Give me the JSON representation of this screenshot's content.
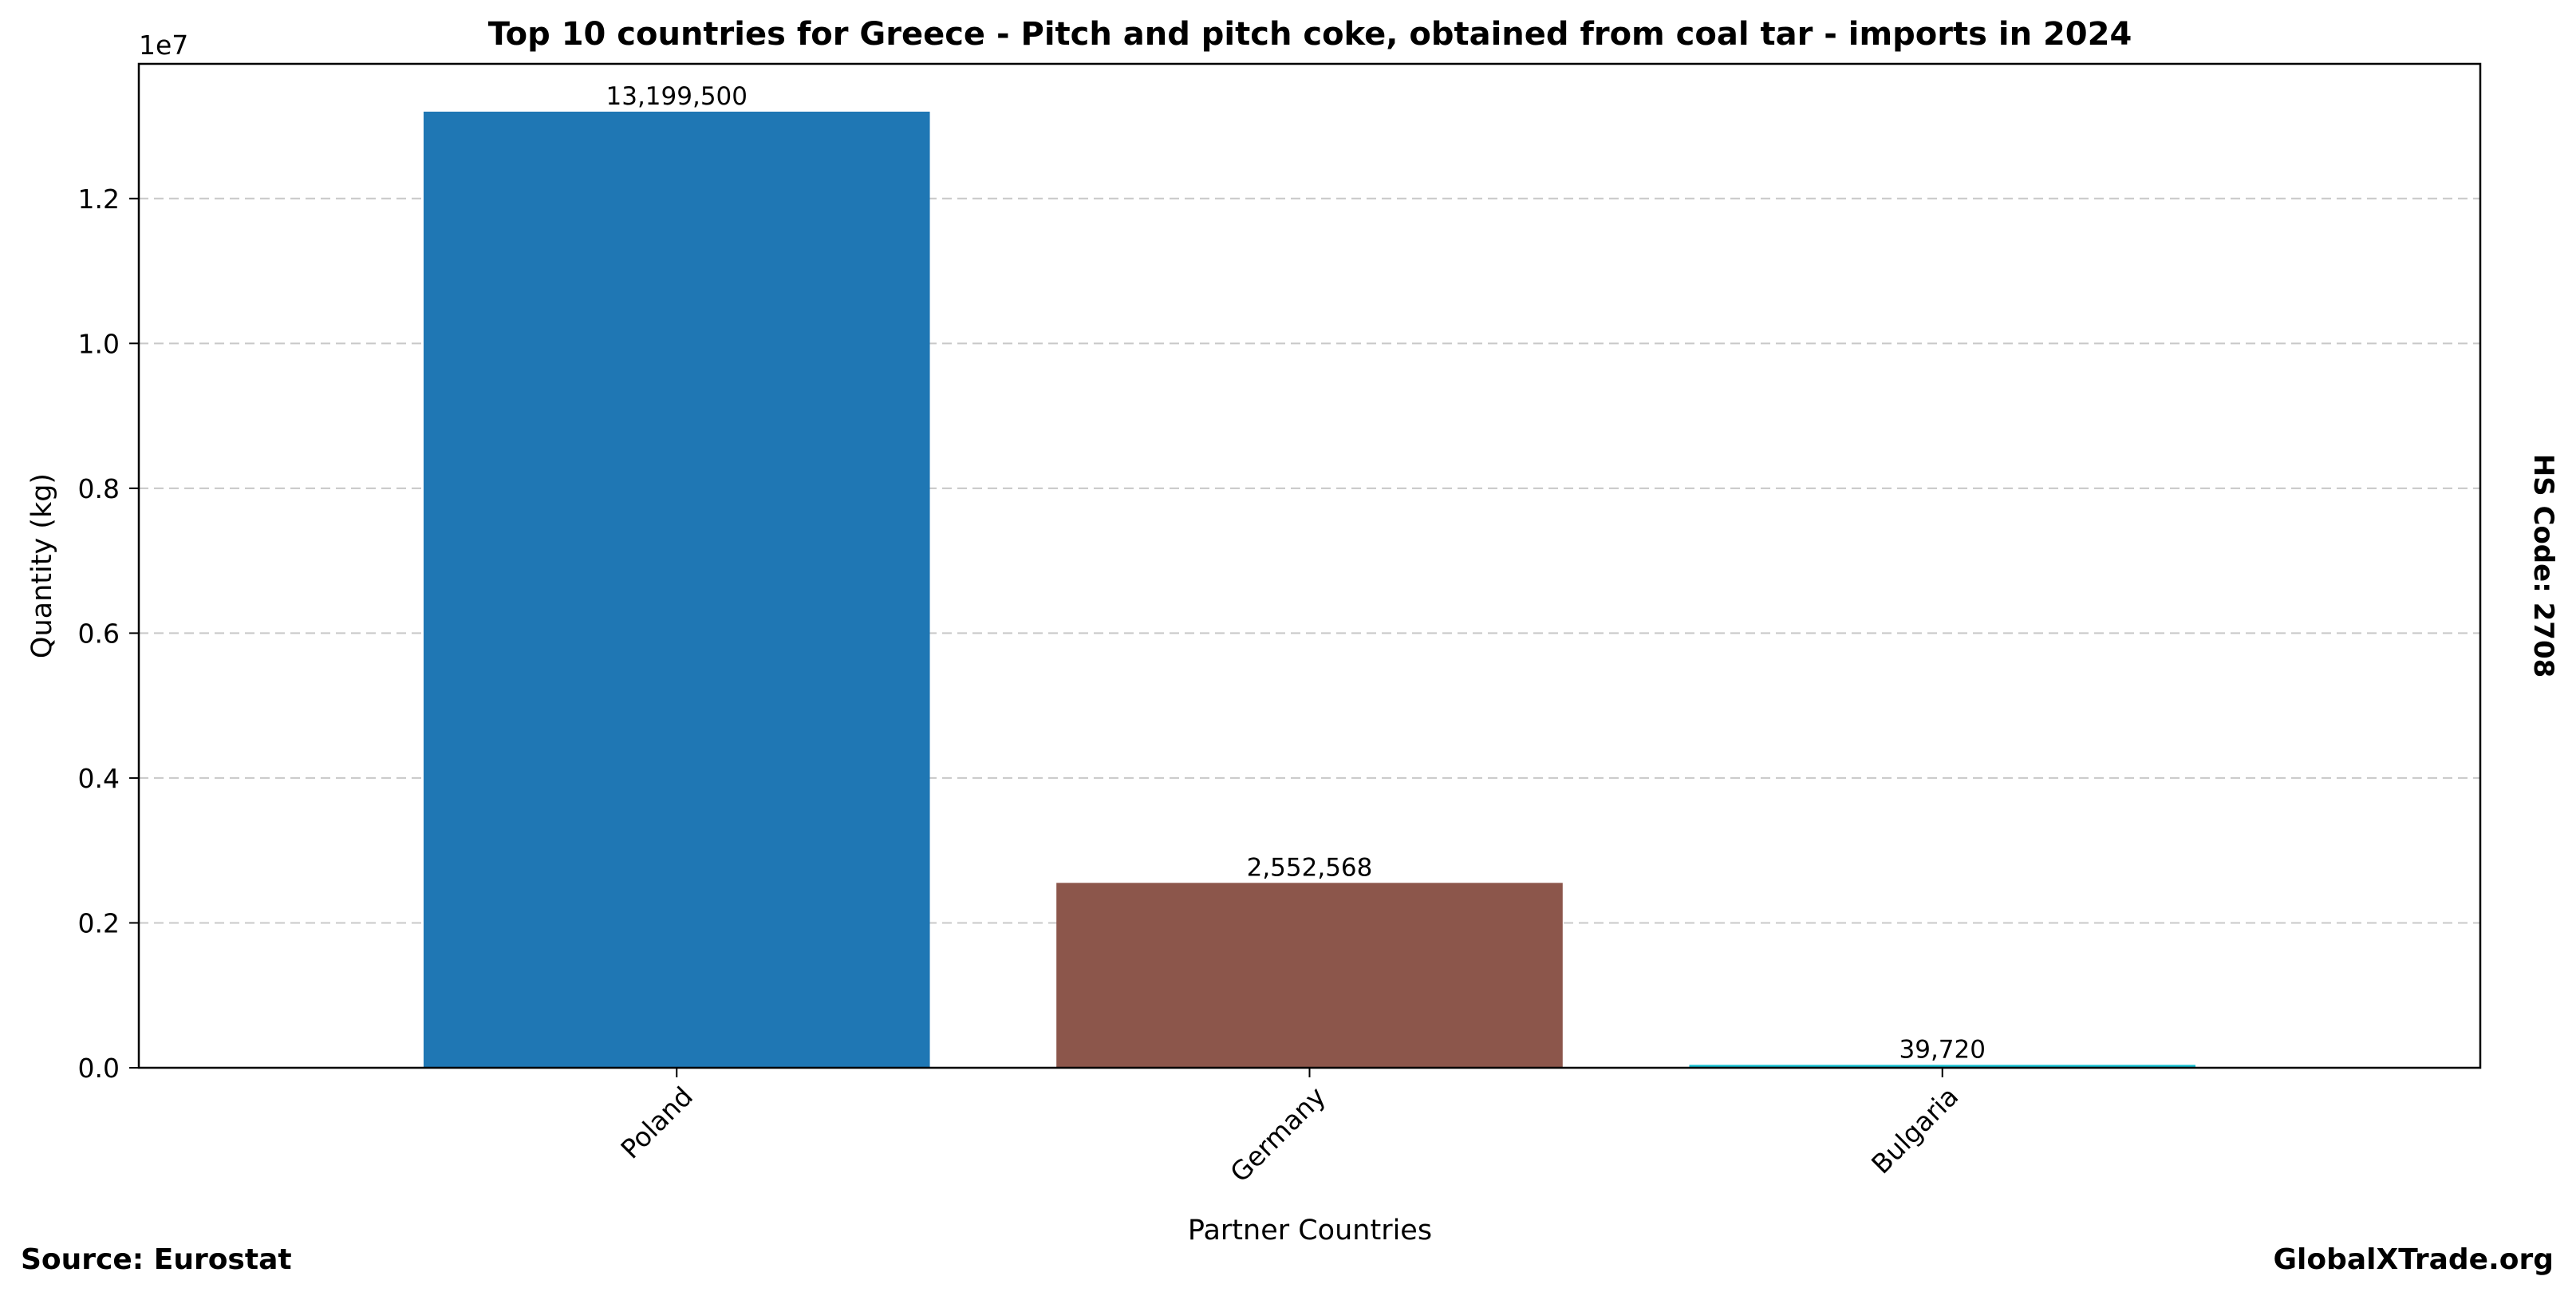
{
  "chart_data": {
    "type": "bar",
    "title": "Top 10 countries for Greece - Pitch and pitch coke, obtained from coal tar - imports in 2024",
    "xlabel": "Partner Countries",
    "ylabel": "Quantity (kg)",
    "scale_label": "1e7",
    "categories": [
      "Poland",
      "Germany",
      "Bulgaria"
    ],
    "values": [
      13199500,
      2552568,
      39720
    ],
    "value_labels": [
      "13,199,500",
      "2,552,568",
      "39,720"
    ],
    "colors": [
      "#1f77b4",
      "#8c564b",
      "#17becf"
    ],
    "ylim": [
      0,
      13859475
    ],
    "yticks": [
      0,
      2000000,
      4000000,
      6000000,
      8000000,
      10000000,
      12000000
    ],
    "ytick_labels": [
      "0.0",
      "0.2",
      "0.4",
      "0.6",
      "0.8",
      "1.0",
      "1.2"
    ],
    "grid": "horizontal dashed",
    "legend": "none"
  },
  "annotations": {
    "source": "Source: Eurostat",
    "site": "GlobalXTrade.org",
    "hs_code": "HS Code: 2708"
  }
}
